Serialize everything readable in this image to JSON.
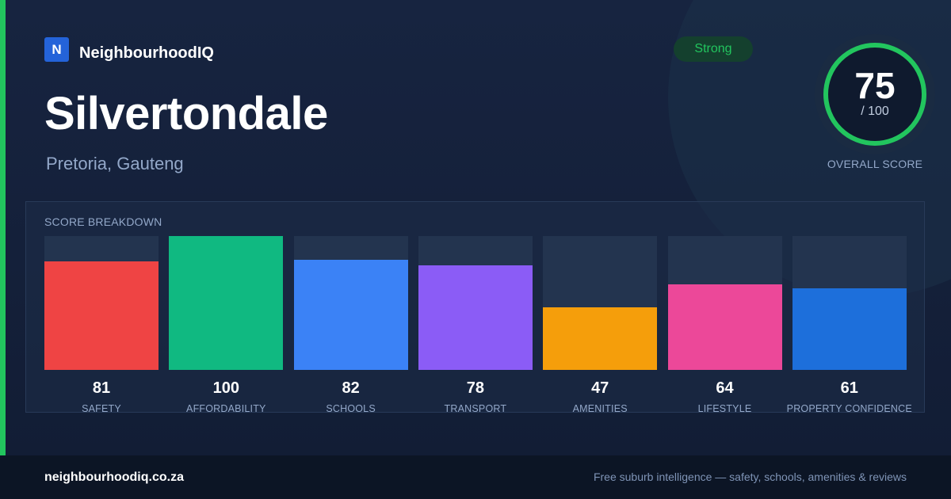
{
  "brand": {
    "logo_letter": "N",
    "name": "NeighbourhoodIQ"
  },
  "suburb": {
    "name": "Silvertondale",
    "region": "Pretoria, Gauteng"
  },
  "badge": {
    "label": "Strong",
    "color": "#22c55e"
  },
  "overall": {
    "score": "75",
    "out_of": "/ 100",
    "caption": "OVERALL SCORE",
    "value": 75,
    "max": 100,
    "color": "#22c55e"
  },
  "breakdown": {
    "title": "SCORE BREAKDOWN",
    "max": 100,
    "items": [
      {
        "label": "SAFETY",
        "value": 81,
        "value_text": "81",
        "color": "#ef4444"
      },
      {
        "label": "AFFORDABILITY",
        "value": 100,
        "value_text": "100",
        "color": "#10b981"
      },
      {
        "label": "SCHOOLS",
        "value": 82,
        "value_text": "82",
        "color": "#3b82f6"
      },
      {
        "label": "TRANSPORT",
        "value": 78,
        "value_text": "78",
        "color": "#8b5cf6"
      },
      {
        "label": "AMENITIES",
        "value": 47,
        "value_text": "47",
        "color": "#f59e0b"
      },
      {
        "label": "LIFESTYLE",
        "value": 64,
        "value_text": "64",
        "color": "#ec4899"
      },
      {
        "label": "PROPERTY CONFIDENCE",
        "value": 61,
        "value_text": "61",
        "color": "#1d6fdb"
      }
    ]
  },
  "footer": {
    "url": "neighbourhoodiq.co.za",
    "tagline": "Free suburb intelligence — safety, schools, amenities & reviews"
  }
}
